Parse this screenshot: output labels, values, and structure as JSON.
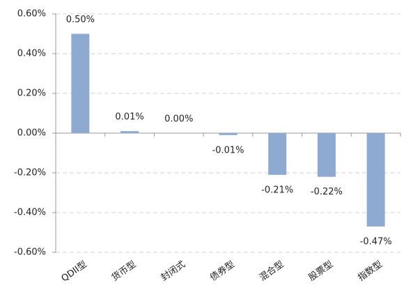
{
  "chart_data": {
    "type": "bar",
    "categories": [
      "QDII型",
      "货币型",
      "封闭式",
      "债券型",
      "混合型",
      "股票型",
      "指数型"
    ],
    "values": [
      0.5,
      0.01,
      0,
      -0.01,
      -0.21,
      -0.22,
      -0.47
    ],
    "value_labels": [
      "0.50%",
      "0.01%",
      "0.00%",
      "-0.01%",
      "-0.21%",
      "-0.22%",
      "-0.47%"
    ],
    "color": "#8eaad0",
    "ylim": [
      -0.6,
      0.6
    ],
    "yticks": [
      {
        "value": -0.6,
        "label": "-0.60%"
      },
      {
        "value": -0.4,
        "label": "-0.40%"
      },
      {
        "value": -0.2,
        "label": "-0.20%"
      },
      {
        "value": 0,
        "label": "0.00%"
      },
      {
        "value": 0.2,
        "label": "0.20%"
      },
      {
        "value": 0.4,
        "label": "0.40%"
      },
      {
        "value": 0.6,
        "label": "0.60%"
      }
    ],
    "grid": true
  }
}
